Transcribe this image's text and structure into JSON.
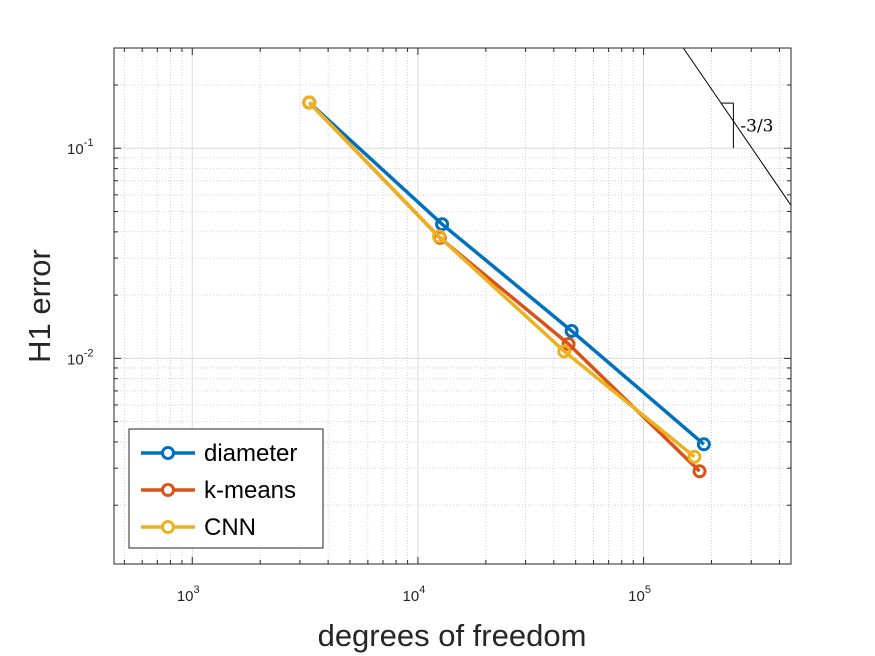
{
  "chart_data": {
    "type": "line",
    "xscale": "log",
    "yscale": "log",
    "xlabel": "degrees of freedom",
    "ylabel": "H1 error",
    "xlim": [
      450,
      450000
    ],
    "ylim": [
      0.00105,
      0.3
    ],
    "grid": true,
    "legend_position": "bottom-left",
    "x_ticks": [
      {
        "base": "10",
        "exp": "3",
        "value": 1000
      },
      {
        "base": "10",
        "exp": "4",
        "value": 10000
      },
      {
        "base": "10",
        "exp": "5",
        "value": 100000
      }
    ],
    "y_ticks": [
      {
        "base": "10",
        "exp": "-2",
        "value": 0.01
      },
      {
        "base": "10",
        "exp": "-1",
        "value": 0.1
      }
    ],
    "series": [
      {
        "name": "diameter",
        "color": "#0072BD",
        "x": [
          3300,
          12800,
          48000,
          185000
        ],
        "y": [
          0.165,
          0.0435,
          0.0135,
          0.0039
        ]
      },
      {
        "name": "k-means",
        "color": "#D95319",
        "x": [
          3300,
          12500,
          46500,
          177000
        ],
        "y": [
          0.165,
          0.0375,
          0.0117,
          0.0029
        ]
      },
      {
        "name": "CNN",
        "color": "#EDB120",
        "x": [
          3300,
          12400,
          44500,
          168000
        ],
        "y": [
          0.165,
          0.038,
          0.0108,
          0.0034
        ]
      }
    ],
    "slope_triangle": {
      "label": "-3/3",
      "line_from": [
        150000,
        0.3
      ],
      "line_to": [
        450000,
        0.0535
      ],
      "corner": [
        250000,
        0.1
      ],
      "top_y": 0.164
    }
  }
}
